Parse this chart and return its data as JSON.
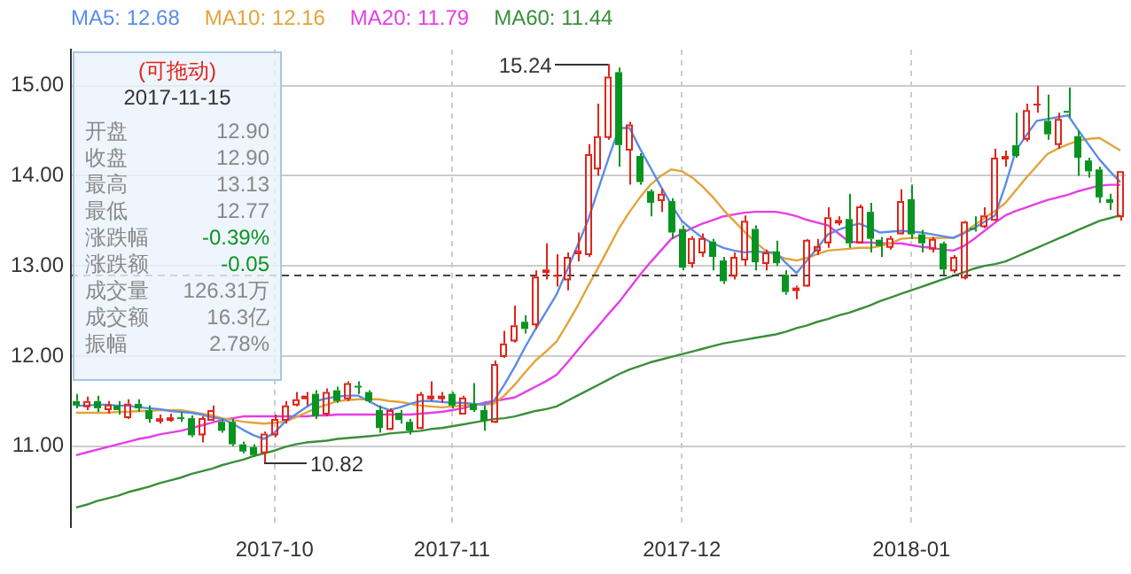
{
  "chart_data": {
    "type": "candlestick",
    "categories": [
      null,
      null,
      null,
      null,
      null,
      null,
      null,
      null,
      null,
      null,
      null,
      null,
      null,
      null,
      null,
      null,
      null,
      null,
      null,
      "2017-10",
      null,
      null,
      null,
      null,
      null,
      null,
      null,
      null,
      null,
      null,
      null,
      null,
      null,
      null,
      null,
      null,
      "2017-11",
      null,
      null,
      null,
      null,
      null,
      null,
      null,
      null,
      null,
      null,
      null,
      null,
      null,
      null,
      null,
      null,
      null,
      null,
      null,
      null,
      null,
      "2017-12",
      null,
      null,
      null,
      null,
      null,
      null,
      null,
      null,
      null,
      null,
      null,
      null,
      null,
      null,
      null,
      null,
      null,
      null,
      null,
      null,
      null,
      "2018-01",
      null,
      null,
      null,
      null,
      null,
      null,
      null,
      null,
      null,
      null,
      null,
      null,
      null,
      null,
      null,
      null,
      null,
      null,
      null,
      null
    ],
    "series": [
      {
        "type": "candlestick",
        "ohlc": [
          [
            11.5,
            11.58,
            11.42,
            11.45
          ],
          [
            11.45,
            11.55,
            11.4,
            11.5
          ],
          [
            11.5,
            11.56,
            11.38,
            11.42
          ],
          [
            11.42,
            11.5,
            11.36,
            11.46
          ],
          [
            11.45,
            11.5,
            11.35,
            11.4
          ],
          [
            11.33,
            11.52,
            11.3,
            11.47
          ],
          [
            11.47,
            11.52,
            11.38,
            11.42
          ],
          [
            11.4,
            11.45,
            11.26,
            11.3
          ],
          [
            11.3,
            11.35,
            11.25,
            11.31
          ],
          [
            11.31,
            11.36,
            11.27,
            11.32
          ],
          [
            11.32,
            11.38,
            11.27,
            11.31
          ],
          [
            11.31,
            11.34,
            11.1,
            11.12
          ],
          [
            11.14,
            11.33,
            11.04,
            11.31
          ],
          [
            11.3,
            11.45,
            11.28,
            11.4
          ],
          [
            11.27,
            11.3,
            11.15,
            11.17
          ],
          [
            11.27,
            11.3,
            11.0,
            11.02
          ],
          [
            11.02,
            11.05,
            10.92,
            10.94
          ],
          [
            10.99,
            11.02,
            10.88,
            10.9
          ],
          [
            10.94,
            11.16,
            10.82,
            11.14
          ],
          [
            11.14,
            11.35,
            11.1,
            11.3
          ],
          [
            11.3,
            11.5,
            11.25,
            11.45
          ],
          [
            11.47,
            11.6,
            11.44,
            11.52
          ],
          [
            11.55,
            11.6,
            11.45,
            11.56
          ],
          [
            11.58,
            11.62,
            11.3,
            11.33
          ],
          [
            11.37,
            11.64,
            11.33,
            11.6
          ],
          [
            11.62,
            11.66,
            11.48,
            11.5
          ],
          [
            11.54,
            11.72,
            11.5,
            11.7
          ],
          [
            11.67,
            11.72,
            11.58,
            11.66
          ],
          [
            11.6,
            11.62,
            11.48,
            11.5
          ],
          [
            11.4,
            11.45,
            11.15,
            11.2
          ],
          [
            11.2,
            11.42,
            11.18,
            11.4
          ],
          [
            11.37,
            11.4,
            11.25,
            11.29
          ],
          [
            11.27,
            11.3,
            11.13,
            11.17
          ],
          [
            11.21,
            11.6,
            11.19,
            11.58
          ],
          [
            11.55,
            11.72,
            11.5,
            11.56
          ],
          [
            11.55,
            11.6,
            11.48,
            11.56
          ],
          [
            11.58,
            11.6,
            11.42,
            11.45
          ],
          [
            11.37,
            11.56,
            11.35,
            11.54
          ],
          [
            11.47,
            11.7,
            11.38,
            11.4
          ],
          [
            11.4,
            11.45,
            11.17,
            11.28
          ],
          [
            11.28,
            11.95,
            11.26,
            11.91
          ],
          [
            12.01,
            12.28,
            11.98,
            12.14
          ],
          [
            12.18,
            12.56,
            12.15,
            12.34
          ],
          [
            12.38,
            12.45,
            12.25,
            12.3
          ],
          [
            12.36,
            12.95,
            12.3,
            12.88
          ],
          [
            12.95,
            13.25,
            12.85,
            12.96
          ],
          [
            12.9,
            13.13,
            12.77,
            12.9
          ],
          [
            12.86,
            13.15,
            12.73,
            13.1
          ],
          [
            13.15,
            13.37,
            13.05,
            13.17
          ],
          [
            13.14,
            14.35,
            13.1,
            14.24
          ],
          [
            14.09,
            14.8,
            14.0,
            14.44
          ],
          [
            14.44,
            15.24,
            14.4,
            15.1
          ],
          [
            15.15,
            15.2,
            14.1,
            14.34
          ],
          [
            14.3,
            14.6,
            13.9,
            14.57
          ],
          [
            14.22,
            14.25,
            13.9,
            13.93
          ],
          [
            13.83,
            13.85,
            13.55,
            13.7
          ],
          [
            13.74,
            13.86,
            13.6,
            13.8
          ],
          [
            13.72,
            13.75,
            13.3,
            13.37
          ],
          [
            13.41,
            13.45,
            12.95,
            12.98
          ],
          [
            13.04,
            13.33,
            12.98,
            13.31
          ],
          [
            13.16,
            13.36,
            13.1,
            13.31
          ],
          [
            13.27,
            13.3,
            12.95,
            13.1
          ],
          [
            13.06,
            13.1,
            12.8,
            12.83
          ],
          [
            12.9,
            13.15,
            12.85,
            13.1
          ],
          [
            13.08,
            13.56,
            13.0,
            13.5
          ],
          [
            13.41,
            13.45,
            12.95,
            13.04
          ],
          [
            13.04,
            13.18,
            12.95,
            13.15
          ],
          [
            13.16,
            13.28,
            13.0,
            13.03
          ],
          [
            12.9,
            12.95,
            12.68,
            12.71
          ],
          [
            12.75,
            12.78,
            12.63,
            12.76
          ],
          [
            12.79,
            13.3,
            12.77,
            13.29
          ],
          [
            13.18,
            13.3,
            13.12,
            13.22
          ],
          [
            13.27,
            13.65,
            13.2,
            13.54
          ],
          [
            13.5,
            13.55,
            13.45,
            13.51
          ],
          [
            13.52,
            13.8,
            13.2,
            13.25
          ],
          [
            13.27,
            13.68,
            13.25,
            13.66
          ],
          [
            13.6,
            13.7,
            13.15,
            13.3
          ],
          [
            13.29,
            13.32,
            13.1,
            13.22
          ],
          [
            13.22,
            13.33,
            13.18,
            13.31
          ],
          [
            13.37,
            13.85,
            13.35,
            13.72
          ],
          [
            13.74,
            13.9,
            13.3,
            13.35
          ],
          [
            13.35,
            13.4,
            13.15,
            13.25
          ],
          [
            13.2,
            13.32,
            13.15,
            13.3
          ],
          [
            13.25,
            13.27,
            12.9,
            12.96
          ],
          [
            12.96,
            13.12,
            12.92,
            13.1
          ],
          [
            12.88,
            13.5,
            12.85,
            13.49
          ],
          [
            13.42,
            13.55,
            13.38,
            13.4
          ],
          [
            13.45,
            13.65,
            13.42,
            13.56
          ],
          [
            13.52,
            14.3,
            13.5,
            14.2
          ],
          [
            14.2,
            14.28,
            14.1,
            14.22
          ],
          [
            14.34,
            14.7,
            14.2,
            14.22
          ],
          [
            14.42,
            14.8,
            14.38,
            14.73
          ],
          [
            14.8,
            15.0,
            14.7,
            14.8
          ],
          [
            14.61,
            14.9,
            14.4,
            14.46
          ],
          [
            14.36,
            14.7,
            14.3,
            14.63
          ],
          [
            14.72,
            14.98,
            14.65,
            14.7
          ],
          [
            14.44,
            14.5,
            14.0,
            14.2
          ],
          [
            14.17,
            14.2,
            13.98,
            14.05
          ],
          [
            14.07,
            14.1,
            13.7,
            13.76
          ],
          [
            13.74,
            13.8,
            13.62,
            13.7
          ],
          [
            13.56,
            14.05,
            13.5,
            14.05
          ]
        ],
        "colors": [
          "#099421",
          "#e0251b",
          "#099421",
          "#e0251b",
          "#099421",
          "#e0251b",
          "#099421",
          "#099421",
          "#e0251b",
          "#e0251b",
          "#099421",
          "#099421",
          "#e0251b",
          "#e0251b",
          "#099421",
          "#099421",
          "#099421",
          "#099421",
          "#e0251b",
          "#e0251b",
          "#e0251b",
          "#e0251b",
          "#e0251b",
          "#099421",
          "#e0251b",
          "#099421",
          "#e0251b",
          "#099421",
          "#099421",
          "#099421",
          "#e0251b",
          "#099421",
          "#099421",
          "#e0251b",
          "#e0251b",
          "#e0251b",
          "#099421",
          "#e0251b",
          "#099421",
          "#099421",
          "#e0251b",
          "#e0251b",
          "#e0251b",
          "#099421",
          "#e0251b",
          "#e0251b",
          "#e0251b",
          "#e0251b",
          "#e0251b",
          "#e0251b",
          "#e0251b",
          "#e0251b",
          "#099421",
          "#e0251b",
          "#099421",
          "#099421",
          "#e0251b",
          "#099421",
          "#099421",
          "#e0251b",
          "#e0251b",
          "#099421",
          "#099421",
          "#e0251b",
          "#e0251b",
          "#099421",
          "#e0251b",
          "#099421",
          "#099421",
          "#e0251b",
          "#e0251b",
          "#e0251b",
          "#e0251b",
          "#e0251b",
          "#099421",
          "#e0251b",
          "#099421",
          "#099421",
          "#e0251b",
          "#e0251b",
          "#099421",
          "#099421",
          "#e0251b",
          "#099421",
          "#e0251b",
          "#e0251b",
          "#099421",
          "#e0251b",
          "#e0251b",
          "#e0251b",
          "#099421",
          "#e0251b",
          "#e0251b",
          "#099421",
          "#e0251b",
          "#099421",
          "#099421",
          "#099421",
          "#099421",
          "#099421",
          "#e0251b"
        ]
      },
      {
        "type": "line",
        "name": "MA5: 12.68",
        "color": "#5a8de6",
        "values": [
          11.45,
          11.45,
          11.46,
          11.46,
          11.45,
          11.45,
          11.43,
          11.42,
          11.41,
          11.39,
          11.38,
          11.37,
          11.35,
          11.32,
          11.3,
          11.25,
          11.18,
          11.12,
          11.08,
          11.15,
          11.27,
          11.35,
          11.43,
          11.5,
          11.53,
          11.55,
          11.56,
          11.56,
          11.5,
          11.44,
          11.4,
          11.43,
          11.47,
          11.5,
          11.5,
          11.49,
          11.48,
          11.48,
          11.47,
          11.46,
          11.5,
          11.68,
          11.88,
          12.1,
          12.3,
          12.49,
          12.68,
          12.95,
          13.22,
          13.5,
          13.85,
          14.2,
          14.53,
          14.53,
          14.3,
          14.09,
          13.88,
          13.68,
          13.5,
          13.4,
          13.31,
          13.25,
          13.2,
          13.17,
          13.15,
          13.16,
          13.15,
          13.15,
          13.03,
          12.92,
          13.06,
          13.2,
          13.35,
          13.4,
          13.44,
          13.47,
          13.42,
          13.37,
          13.38,
          13.39,
          13.38,
          13.37,
          13.35,
          13.33,
          13.31,
          13.36,
          13.42,
          13.49,
          13.56,
          13.9,
          14.28,
          14.45,
          14.61,
          14.63,
          14.65,
          14.67,
          14.5,
          14.34,
          14.18,
          14.05,
          13.93
        ]
      },
      {
        "type": "line",
        "name": "MA10: 12.16",
        "color": "#e3a33a",
        "values": [
          11.37,
          11.37,
          11.37,
          11.37,
          11.38,
          11.38,
          11.39,
          11.39,
          11.4,
          11.4,
          11.4,
          11.38,
          11.36,
          11.34,
          11.31,
          11.29,
          11.27,
          11.26,
          11.25,
          11.26,
          11.27,
          11.32,
          11.37,
          11.42,
          11.46,
          11.5,
          11.51,
          11.52,
          11.52,
          11.52,
          11.5,
          11.49,
          11.47,
          11.45,
          11.44,
          11.43,
          11.44,
          11.45,
          11.46,
          11.46,
          11.47,
          11.56,
          11.68,
          11.82,
          11.95,
          12.05,
          12.16,
          12.35,
          12.55,
          12.77,
          12.98,
          13.2,
          13.42,
          13.6,
          13.76,
          13.9,
          14.0,
          14.07,
          14.05,
          13.98,
          13.88,
          13.76,
          13.62,
          13.5,
          13.38,
          13.27,
          13.17,
          13.12,
          13.08,
          13.06,
          13.09,
          13.13,
          13.17,
          13.18,
          13.19,
          13.2,
          13.2,
          13.22,
          13.25,
          13.3,
          13.31,
          13.31,
          13.31,
          13.31,
          13.31,
          13.37,
          13.45,
          13.53,
          13.61,
          13.7,
          13.84,
          13.98,
          14.11,
          14.24,
          14.3,
          14.35,
          14.39,
          14.41,
          14.42,
          14.35,
          14.28
        ]
      },
      {
        "type": "line",
        "name": "MA20: 11.79",
        "color": "#e53ee5",
        "values": [
          10.9,
          10.93,
          10.96,
          10.99,
          11.02,
          11.05,
          11.08,
          11.1,
          11.13,
          11.15,
          11.17,
          11.2,
          11.23,
          11.26,
          11.29,
          11.31,
          11.33,
          11.33,
          11.33,
          11.33,
          11.33,
          11.33,
          11.33,
          11.34,
          11.34,
          11.35,
          11.35,
          11.35,
          11.35,
          11.35,
          11.35,
          11.35,
          11.35,
          11.36,
          11.37,
          11.38,
          11.4,
          11.42,
          11.45,
          11.48,
          11.5,
          11.52,
          11.54,
          11.6,
          11.66,
          11.72,
          11.79,
          11.92,
          12.06,
          12.2,
          12.33,
          12.47,
          12.6,
          12.75,
          12.9,
          13.04,
          13.17,
          13.3,
          13.36,
          13.42,
          13.47,
          13.51,
          13.55,
          13.57,
          13.59,
          13.6,
          13.6,
          13.6,
          13.58,
          13.55,
          13.51,
          13.48,
          13.45,
          13.36,
          13.27,
          13.26,
          13.26,
          13.25,
          13.25,
          13.25,
          13.23,
          13.21,
          13.2,
          13.18,
          13.17,
          13.22,
          13.3,
          13.39,
          13.48,
          13.56,
          13.61,
          13.65,
          13.69,
          13.73,
          13.76,
          13.79,
          13.83,
          13.86,
          13.89,
          13.9,
          13.9
        ]
      },
      {
        "type": "line",
        "name": "MA60: 11.44",
        "color": "#3a8f3a",
        "values": [
          10.32,
          10.35,
          10.39,
          10.42,
          10.45,
          10.49,
          10.52,
          10.55,
          10.59,
          10.62,
          10.65,
          10.69,
          10.72,
          10.75,
          10.79,
          10.82,
          10.85,
          10.89,
          10.92,
          10.95,
          10.99,
          11.02,
          11.04,
          11.05,
          11.06,
          11.08,
          11.09,
          11.1,
          11.11,
          11.12,
          11.14,
          11.15,
          11.16,
          11.17,
          11.19,
          11.2,
          11.22,
          11.24,
          11.26,
          11.28,
          11.3,
          11.31,
          11.33,
          11.36,
          11.39,
          11.41,
          11.44,
          11.5,
          11.56,
          11.62,
          11.68,
          11.74,
          11.8,
          11.85,
          11.89,
          11.93,
          11.96,
          11.99,
          12.02,
          12.05,
          12.08,
          12.11,
          12.14,
          12.16,
          12.18,
          12.2,
          12.22,
          12.24,
          12.27,
          12.31,
          12.34,
          12.38,
          12.41,
          12.45,
          12.48,
          12.52,
          12.56,
          12.61,
          12.65,
          12.69,
          12.73,
          12.77,
          12.81,
          12.85,
          12.89,
          12.93,
          12.97,
          13.0,
          13.02,
          13.05,
          13.1,
          13.15,
          13.2,
          13.25,
          13.3,
          13.35,
          13.4,
          13.45,
          13.5,
          13.53,
          13.56
        ]
      }
    ],
    "ylim": [
      10.1,
      15.4
    ],
    "yticks": [
      {
        "value": 11,
        "label": "11.00"
      },
      {
        "value": 12,
        "label": "12.00"
      },
      {
        "value": 13,
        "label": "13.00"
      },
      {
        "value": 14,
        "label": "14.00"
      },
      {
        "value": 15,
        "label": "15.00"
      }
    ],
    "grid": true,
    "legend": "top left",
    "line_style": "solid",
    "ref_lines": [
      {
        "axis": "y",
        "value": 12.9,
        "color": "#444444",
        "line_style": "dashed"
      }
    ],
    "annotations": [
      "15.24",
      "10.82",
      "(可拖动)",
      "2017-11-15",
      "开盘",
      "12.90",
      "收盘",
      "12.90",
      "最高",
      "13.13",
      "最低",
      "12.77",
      "涨跌幅",
      "-0.39%",
      "涨跌额",
      "-0.05",
      "成交量",
      "126.31万",
      "成交额",
      "16.3亿",
      "振幅",
      "2.78%"
    ]
  }
}
